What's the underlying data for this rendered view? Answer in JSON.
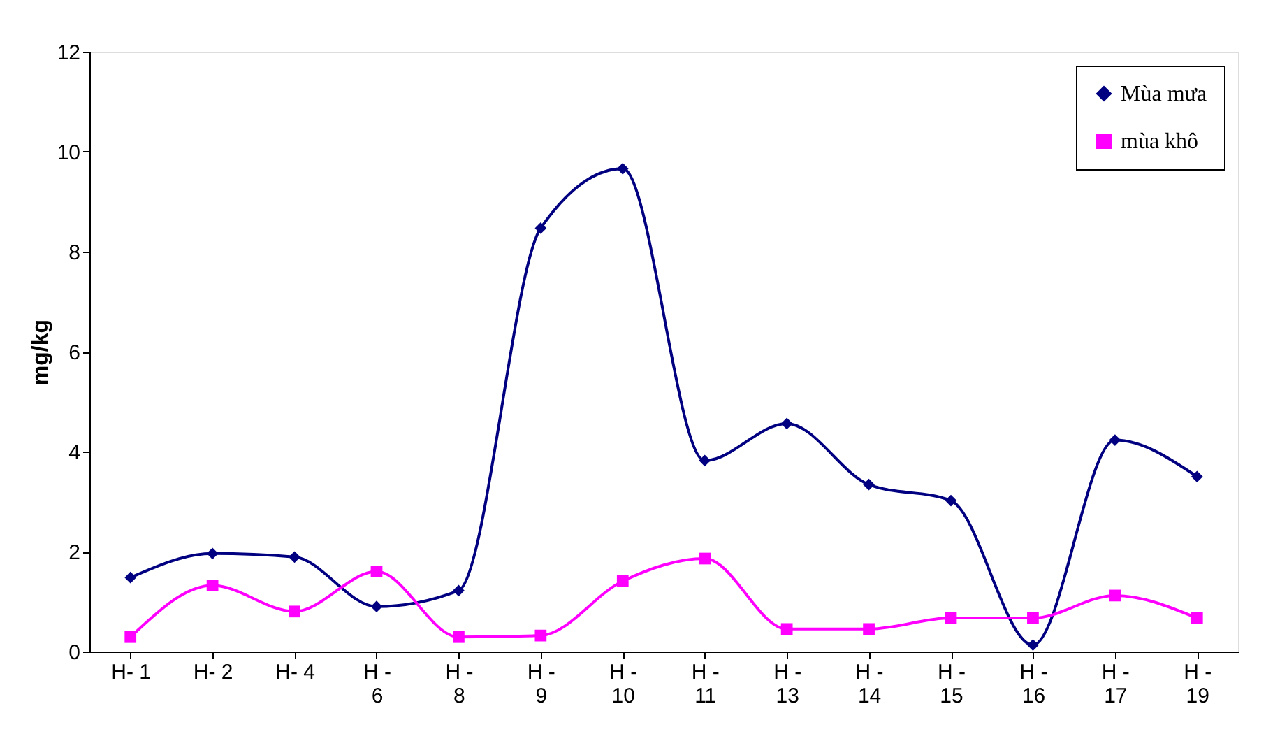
{
  "chart_data": {
    "type": "line",
    "ylabel": "mg/kg",
    "categories": [
      "H- 1",
      "H- 2",
      "H- 4",
      "H -\n6",
      "H -\n8",
      "H -\n9",
      "H -\n10",
      "H -\n11",
      "H -\n13",
      "H -\n14",
      "H -\n15",
      "H -\n16",
      "H -\n17",
      "H -\n19"
    ],
    "series": [
      {
        "name": "Mùa mưa",
        "color": "#000080",
        "marker": "diamond",
        "values": [
          1.48,
          1.96,
          1.89,
          0.9,
          1.22,
          8.47,
          9.66,
          3.82,
          4.56,
          3.34,
          3.02,
          0.13,
          4.23,
          3.5
        ]
      },
      {
        "name": "mùa khô",
        "color": "#ff00ff",
        "marker": "square",
        "values": [
          0.29,
          1.32,
          0.8,
          1.6,
          0.29,
          0.32,
          1.41,
          1.86,
          0.45,
          0.45,
          0.67,
          0.67,
          1.12,
          0.67
        ]
      }
    ],
    "ylim": [
      0,
      12
    ],
    "yticks": [
      0,
      2,
      4,
      6,
      8,
      10,
      12
    ],
    "grid": false,
    "legend": "top right"
  }
}
